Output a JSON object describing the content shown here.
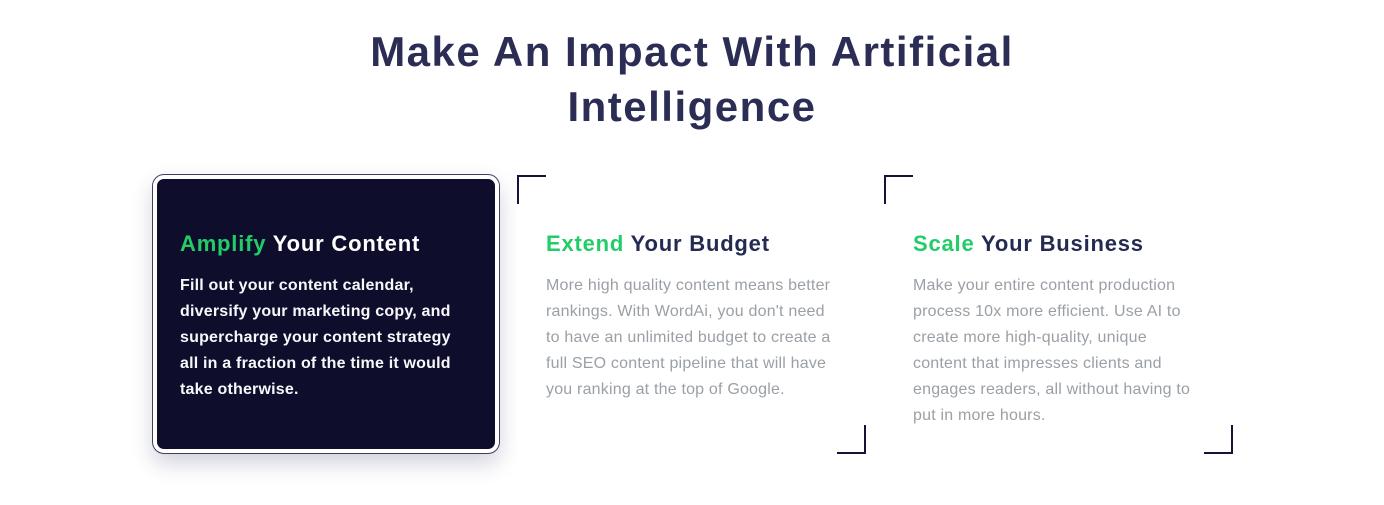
{
  "heading": {
    "line1": "Make An Impact With Artificial",
    "line2": "Intelligence"
  },
  "colors": {
    "accent_green": "#22cd68",
    "heading_navy": "#2b2d55",
    "card_dark_bg": "#0e0e2c",
    "body_gray": "#9aa0a6",
    "bracket_navy": "#14143a"
  },
  "cards": [
    {
      "title_highlight": "Amplify",
      "title_rest": "Your Content",
      "body": "Fill out your content calendar, diversify your marketing copy, and supercharge your content strategy all in a fraction of the time it would take otherwise."
    },
    {
      "title_highlight": "Extend",
      "title_rest": "Your Budget",
      "body": "More high quality content means better rankings. With WordAi, you don't need to have an unlimited budget to create a full SEO content pipeline that will have you ranking at the top of Google."
    },
    {
      "title_highlight": "Scale",
      "title_rest": "Your Business",
      "body": "Make your entire content production process 10x more efficient. Use AI to create more high-quality, unique content that impresses clients and engages readers, all without having to put in more hours."
    }
  ]
}
